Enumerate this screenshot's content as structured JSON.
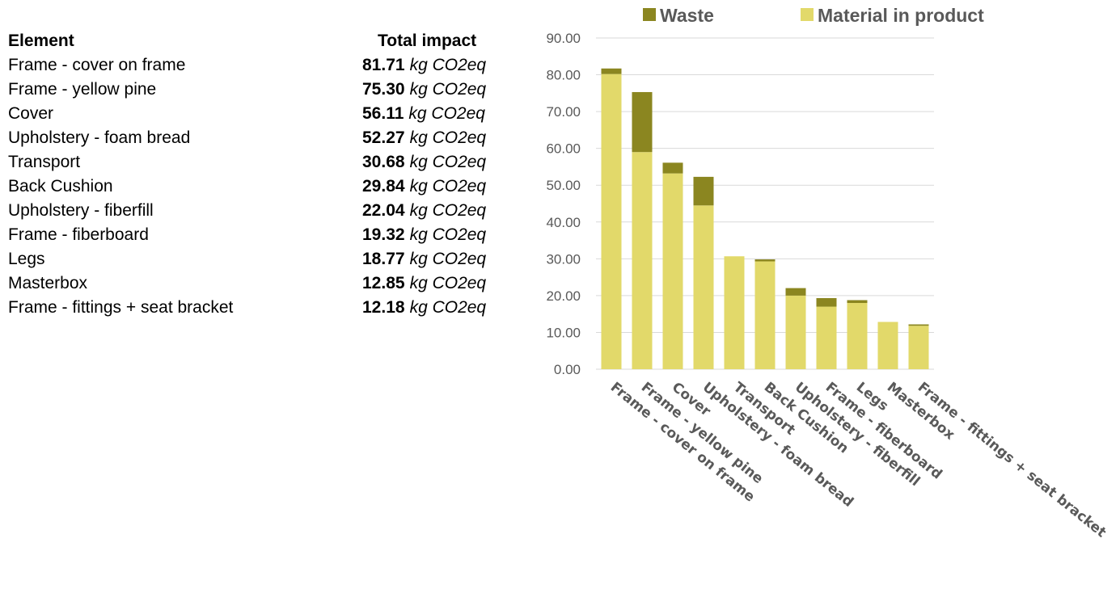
{
  "table": {
    "header_element": "Element",
    "header_impact": "Total impact",
    "unit": "kg CO2eq",
    "rows": [
      {
        "element": "Frame - cover on frame",
        "impact": "81.71"
      },
      {
        "element": "Frame - yellow pine",
        "impact": "75.30"
      },
      {
        "element": "Cover",
        "impact": "56.11"
      },
      {
        "element": "Upholstery - foam bread",
        "impact": "52.27"
      },
      {
        "element": "Transport",
        "impact": "30.68"
      },
      {
        "element": "Back Cushion",
        "impact": "29.84"
      },
      {
        "element": "Upholstery - fiberfill",
        "impact": "22.04"
      },
      {
        "element": "Frame - fiberboard",
        "impact": "19.32"
      },
      {
        "element": "Legs",
        "impact": "18.77"
      },
      {
        "element": "Masterbox",
        "impact": "12.85"
      },
      {
        "element": "Frame - fittings + seat bracket",
        "impact": "12.18"
      }
    ]
  },
  "chart_data": {
    "type": "bar",
    "stacked": true,
    "categories": [
      "Frame - cover on frame",
      "Frame - yellow pine",
      "Cover",
      "Upholstery - foam bread",
      "Transport",
      "Back Cushion",
      "Upholstery - fiberfill",
      "Frame - fiberboard",
      "Legs",
      "Masterbox",
      "Frame - fittings + seat bracket"
    ],
    "series": [
      {
        "name": "Material in product",
        "color": "#e2d96a",
        "values": [
          80.2,
          59.0,
          53.2,
          44.5,
          30.68,
          29.3,
          20.0,
          17.0,
          18.0,
          12.85,
          11.8
        ]
      },
      {
        "name": "Waste",
        "color": "#8b8620",
        "values": [
          1.51,
          16.3,
          2.91,
          7.77,
          0.0,
          0.54,
          2.04,
          2.32,
          0.77,
          0.0,
          0.38
        ]
      }
    ],
    "legend_order": [
      "Waste",
      "Material in product"
    ],
    "legend_position": "top",
    "y_ticks": [
      "0.00",
      "10.00",
      "20.00",
      "30.00",
      "40.00",
      "50.00",
      "60.00",
      "70.00",
      "80.00",
      "90.00"
    ],
    "ylim": [
      0,
      90
    ],
    "grid": true,
    "title": "",
    "xlabel": "",
    "ylabel": "",
    "colors": {
      "grid": "#d9d9d9",
      "axis_text": "#595959"
    }
  }
}
